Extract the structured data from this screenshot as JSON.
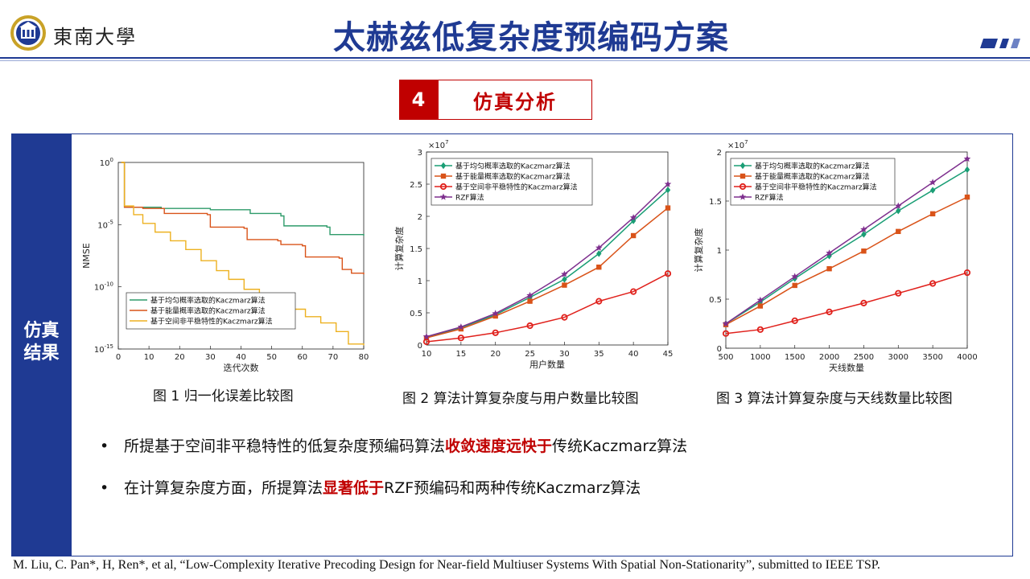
{
  "header": {
    "logo_name": "東南大學",
    "title": "太赫兹低复杂度预编码方案",
    "accent": "#1f3a93"
  },
  "section": {
    "number": "4",
    "label": "仿真分析",
    "color": "#c00000"
  },
  "sidebar": {
    "label_line1": "仿真",
    "label_line2": "结果"
  },
  "figures": [
    {
      "caption": "图 1 归一化误差比较图"
    },
    {
      "caption": "图 2 算法计算复杂度与用户数量比较图"
    },
    {
      "caption": "图 3 算法计算复杂度与天线数量比较图"
    }
  ],
  "bullets": [
    {
      "pre": "所提基于空间非平稳特性的低复杂度预编码算法",
      "hl": "收敛速度远快于",
      "post": "传统Kaczmarz算法"
    },
    {
      "pre": "在计算复杂度方面，所提算法",
      "hl": "显著低于",
      "post": "RZF预编码和两种传统Kaczmarz算法"
    }
  ],
  "reference": "M. Liu, C. Pan*, H, Ren*, et al, “Low-Complexity Iterative Precoding Design for Near-field Multiuser Systems With Spatial Non-Stationarity”, submitted to IEEE TSP.",
  "chart_data": [
    {
      "type": "line",
      "xlabel": "迭代次数",
      "ylabel": "NMSE",
      "xlim": [
        0,
        80
      ],
      "xticks": [
        "0",
        "10",
        "20",
        "30",
        "40",
        "50",
        "60",
        "70",
        "80"
      ],
      "yscale": "log",
      "yticks": [
        "10^0",
        "10^-5",
        "10^-10",
        "10^-15"
      ],
      "ylim_exp": [
        -15,
        0
      ],
      "legend_position": "bottom-left",
      "series": [
        {
          "name": "基于均匀概率选取的Kaczmarz算法",
          "color": "#2e9b6a",
          "points": [
            [
              1,
              0
            ],
            [
              2,
              -3.6
            ],
            [
              14,
              -3.7
            ],
            [
              30,
              -3.8
            ],
            [
              43,
              -4.1
            ],
            [
              53,
              -4.3
            ],
            [
              54,
              -5.1
            ],
            [
              68,
              -5.2
            ],
            [
              69,
              -5.8
            ],
            [
              80,
              -5.9
            ]
          ]
        },
        {
          "name": "基于能量概率选取的Kaczmarz算法",
          "color": "#d95319",
          "points": [
            [
              1,
              0
            ],
            [
              2,
              -3.6
            ],
            [
              8,
              -3.7
            ],
            [
              15,
              -4.1
            ],
            [
              29,
              -4.2
            ],
            [
              30,
              -5.2
            ],
            [
              41,
              -5.3
            ],
            [
              42,
              -6.2
            ],
            [
              52,
              -6.3
            ],
            [
              53,
              -6.6
            ],
            [
              60,
              -6.7
            ],
            [
              61,
              -7.6
            ],
            [
              72,
              -7.7
            ],
            [
              73,
              -8.6
            ],
            [
              76,
              -8.9
            ],
            [
              80,
              -9.0
            ]
          ]
        },
        {
          "name": "基于空间非平稳特性的Kaczmarz算法",
          "color": "#edb120",
          "points": [
            [
              1,
              0
            ],
            [
              2,
              -3.5
            ],
            [
              5,
              -4.2
            ],
            [
              8,
              -4.9
            ],
            [
              12,
              -5.6
            ],
            [
              17,
              -6.3
            ],
            [
              22,
              -7.0
            ],
            [
              27,
              -7.9
            ],
            [
              32,
              -8.7
            ],
            [
              36,
              -9.4
            ],
            [
              41,
              -10.2
            ],
            [
              46,
              -10.6
            ],
            [
              51,
              -11.0
            ],
            [
              56,
              -11.8
            ],
            [
              61,
              -12.4
            ],
            [
              66,
              -12.9
            ],
            [
              71,
              -13.6
            ],
            [
              75,
              -14.6
            ],
            [
              80,
              -14.7
            ]
          ]
        }
      ]
    },
    {
      "type": "line",
      "xlabel": "用户数量",
      "ylabel": "计算复杂度",
      "exponent_label": "×10^7",
      "xlim": [
        10,
        45
      ],
      "xticks": [
        "10",
        "15",
        "20",
        "25",
        "30",
        "35",
        "40",
        "45"
      ],
      "ylim": [
        0,
        3
      ],
      "yticks": [
        "0",
        "0.5",
        "1",
        "1.5",
        "2",
        "2.5",
        "3"
      ],
      "legend_position": "top-left",
      "x": [
        10,
        15,
        20,
        25,
        30,
        35,
        40,
        45
      ],
      "series": [
        {
          "name": "基于均匀概率选取的Kaczmarz算法",
          "color": "#1a9e75",
          "marker": "diamond",
          "values": [
            0.12,
            0.27,
            0.47,
            0.74,
            1.02,
            1.42,
            1.93,
            2.41
          ]
        },
        {
          "name": "基于能量概率选取的Kaczmarz算法",
          "color": "#d95319",
          "marker": "square",
          "values": [
            0.11,
            0.25,
            0.45,
            0.68,
            0.93,
            1.21,
            1.7,
            2.13
          ]
        },
        {
          "name": "基于空间非平稳特性的Kaczmarz算法",
          "color": "#e0201b",
          "marker": "circle",
          "values": [
            0.05,
            0.11,
            0.19,
            0.3,
            0.43,
            0.68,
            0.83,
            1.11
          ]
        },
        {
          "name": "RZF算法",
          "color": "#7e2f8e",
          "marker": "star",
          "values": [
            0.13,
            0.28,
            0.49,
            0.77,
            1.1,
            1.51,
            1.98,
            2.5
          ]
        }
      ]
    },
    {
      "type": "line",
      "xlabel": "天线数量",
      "ylabel": "计算复杂度",
      "exponent_label": "×10^7",
      "xlim": [
        500,
        4000
      ],
      "xticks": [
        "500",
        "1000",
        "1500",
        "2000",
        "2500",
        "3000",
        "3500",
        "4000"
      ],
      "ylim": [
        0,
        2
      ],
      "yticks": [
        "0",
        "0.5",
        "1",
        "1.5",
        "2"
      ],
      "legend_position": "top-left",
      "x": [
        500,
        1000,
        1500,
        2000,
        2500,
        3000,
        3500,
        4000
      ],
      "series": [
        {
          "name": "基于均匀概率选取的Kaczmarz算法",
          "color": "#1a9e75",
          "marker": "diamond",
          "values": [
            0.25,
            0.47,
            0.71,
            0.94,
            1.16,
            1.4,
            1.61,
            1.82
          ]
        },
        {
          "name": "基于能量概率选取的Kaczmarz算法",
          "color": "#d95319",
          "marker": "square",
          "values": [
            0.24,
            0.43,
            0.64,
            0.81,
            0.99,
            1.19,
            1.37,
            1.54
          ]
        },
        {
          "name": "基于空间非平稳特性的Kaczmarz算法",
          "color": "#e0201b",
          "marker": "circle",
          "values": [
            0.15,
            0.19,
            0.28,
            0.37,
            0.46,
            0.56,
            0.66,
            0.77
          ]
        },
        {
          "name": "RZF算法",
          "color": "#7e2f8e",
          "marker": "star",
          "values": [
            0.25,
            0.49,
            0.73,
            0.97,
            1.21,
            1.45,
            1.69,
            1.93
          ]
        }
      ]
    }
  ]
}
